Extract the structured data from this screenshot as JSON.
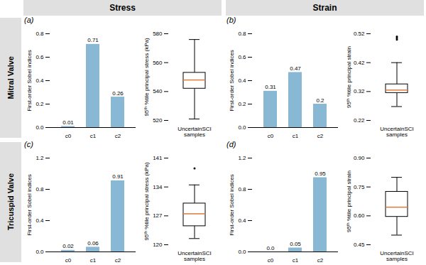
{
  "annotations": {
    "columns": [
      "Stress",
      "Strain"
    ],
    "rows": [
      "Mitral Valve",
      "Tricuspid Valve"
    ],
    "color": "#e0e0e0"
  },
  "chart_data": [
    {
      "type": "bar",
      "title": "(a)",
      "categories": [
        "c0",
        "c1",
        "c2"
      ],
      "values": [
        0.01,
        0.71,
        0.26
      ],
      "value_labels": [
        "0.01",
        "0.71",
        "0.26"
      ],
      "data_labels": true,
      "color": "#89b8d4",
      "ylim": [
        0,
        0.8
      ],
      "yticks": [
        {
          "value": 0,
          "label": "0.0"
        },
        0.2,
        0.4,
        0.6,
        0.8
      ],
      "ylabel": "First-order Sobel indices"
    },
    {
      "type": "box",
      "categories": [
        "UncertainSCI\nsamples"
      ],
      "median": 548,
      "q1": 542,
      "q3": 553,
      "whislo": 521,
      "whishi": 576,
      "fliers": [],
      "color": "#e07b39",
      "ylim": [
        520,
        580
      ],
      "yticks": [
        520,
        540,
        560,
        580
      ],
      "ylabel": "95ᵗʰ %tile principal stress (kPa)"
    },
    {
      "type": "bar",
      "title": "(b)",
      "categories": [
        "c0",
        "c1",
        "c2"
      ],
      "values": [
        0.31,
        0.47,
        0.2
      ],
      "value_labels": [
        "0.31",
        "0.47",
        "0.2"
      ],
      "data_labels": true,
      "color": "#89b8d4",
      "ylim": [
        0,
        0.8
      ],
      "yticks": [
        {
          "value": 0,
          "label": "0.0"
        },
        0.2,
        0.4,
        0.6,
        0.8
      ],
      "ylabel": "First-order Sobel indices"
    },
    {
      "type": "box",
      "categories": [
        "UncertainSCI\nsamples"
      ],
      "median": 0.325,
      "q1": 0.315,
      "q3": 0.345,
      "whislo": 0.268,
      "whishi": 0.42,
      "fliers": [
        0.5,
        0.51,
        0.505
      ],
      "color": "#e07b39",
      "ylim": [
        0.22,
        0.52
      ],
      "yticks": [
        0.22,
        0.32,
        0.42,
        0.52
      ],
      "ylabel": "95ᵗʰ %tile principal strain"
    },
    {
      "type": "bar",
      "title": "(c)",
      "categories": [
        "c0",
        "c1",
        "c2"
      ],
      "values": [
        0.02,
        0.06,
        0.91
      ],
      "value_labels": [
        "0.02",
        "0.06",
        "0.91"
      ],
      "data_labels": true,
      "color": "#89b8d4",
      "ylim": [
        0,
        1.2
      ],
      "yticks": [
        {
          "value": 0,
          "label": "0.0"
        },
        0.4,
        0.8,
        1.2
      ],
      "ylabel": "First-order Sobel indices"
    },
    {
      "type": "box",
      "categories": [
        "UncertainSCI\nsamples"
      ],
      "median": 127.5,
      "q1": 124.5,
      "q3": 130.0,
      "whislo": 121.5,
      "whishi": 134.5,
      "fliers": [
        138.5
      ],
      "color": "#e07b39",
      "ylim": [
        120,
        141
      ],
      "yticks": [
        120,
        127,
        134,
        141
      ],
      "ylabel": "95ᵗʰ %tile principal stress (kPa)"
    },
    {
      "type": "bar",
      "title": "(d)",
      "categories": [
        "c0",
        "c1",
        "c2"
      ],
      "values": [
        0.0,
        0.05,
        0.95
      ],
      "value_labels": [
        "0.0",
        "0.05",
        "0.95"
      ],
      "data_labels": true,
      "color": "#89b8d4",
      "ylim": [
        0,
        1.2
      ],
      "yticks": [
        {
          "value": 0,
          "label": "0.0"
        },
        0.4,
        0.8,
        1.2
      ],
      "ylabel": "First-order Sobel indices"
    },
    {
      "type": "box",
      "categories": [
        "UncertainSCI\nsamples"
      ],
      "median": 0.645,
      "q1": 0.595,
      "q3": 0.725,
      "whislo": 0.5,
      "whishi": 0.8,
      "fliers": [],
      "color": "#e07b39",
      "ylim": [
        0.45,
        0.9
      ],
      "yticks": [
        0.45,
        {
          "value": 0.6,
          "label": "0.60"
        },
        0.75,
        {
          "value": 0.9,
          "label": "0.90"
        }
      ],
      "ylabel": "95ᵗʰ %tile principal strain"
    }
  ]
}
